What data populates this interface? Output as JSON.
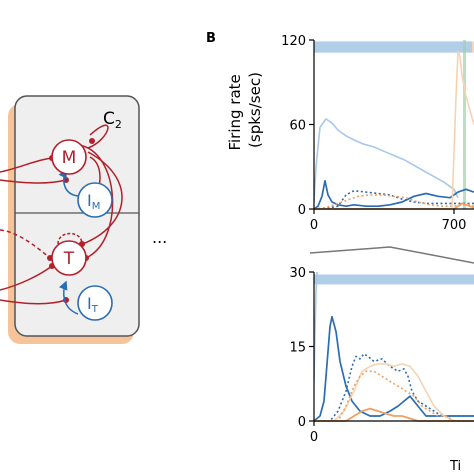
{
  "colors": {
    "red": "#b2202a",
    "blue": "#2a6db3",
    "orange": "#f0a060",
    "light_blue": "#a8c8e8",
    "light_orange": "#f8d2b0",
    "box_fill": "#efefef",
    "box_stroke": "#555555",
    "band_blue": "#a9c9e6",
    "band_green": "#9fd0a8"
  },
  "diagram": {
    "module_label": "C",
    "module_sub": "2",
    "ellipsis": "...",
    "nodes": {
      "m_main": "M",
      "m_inh_main": "I",
      "m_inh_sub": "M",
      "t_main": "T",
      "t_inh_main": "I",
      "t_inh_sub": "T"
    }
  },
  "panel_label": "B",
  "ylabel_line1": "Firing rate",
  "ylabel_line2": "(spks/sec)",
  "xlabel_partial": "Ti",
  "chart_data": [
    {
      "type": "line",
      "name": "top",
      "ylim": [
        0,
        120
      ],
      "xlim": [
        0,
        800
      ],
      "yticks": [
        "120",
        "60",
        "0"
      ],
      "ytick_values": [
        120,
        60,
        0
      ],
      "xticks": [
        "0",
        "700"
      ],
      "xtick_values": [
        0,
        700
      ],
      "series": [
        {
          "style": "light-blue",
          "x": [
            0,
            10,
            30,
            60,
            90,
            120,
            160,
            200,
            250,
            300,
            350,
            400,
            450,
            500,
            550,
            600,
            650,
            700,
            720
          ],
          "y": [
            5,
            30,
            58,
            64,
            61,
            56,
            52,
            49,
            46,
            44,
            41,
            38,
            35,
            31,
            27,
            23,
            19,
            14,
            8
          ]
        },
        {
          "style": "blue",
          "x": [
            0,
            20,
            40,
            55,
            70,
            90,
            120,
            160,
            200,
            260,
            320,
            380,
            440,
            500,
            560,
            620,
            680,
            720,
            760,
            800
          ],
          "y": [
            0,
            2,
            9,
            20,
            10,
            5,
            3,
            2,
            3,
            2,
            2,
            3,
            5,
            9,
            11,
            9,
            8,
            12,
            14,
            12
          ]
        },
        {
          "style": "blue-dotted",
          "x": [
            0,
            40,
            80,
            120,
            160,
            200,
            260,
            320,
            380,
            440,
            500,
            560,
            620,
            680,
            720,
            760,
            800
          ],
          "y": [
            0,
            0,
            1,
            2,
            10,
            13,
            12,
            11,
            10,
            7,
            5,
            4,
            4,
            4,
            4,
            4,
            4
          ]
        },
        {
          "style": "orange-dotted",
          "x": [
            0,
            60,
            100,
            140,
            180,
            220,
            280,
            340,
            400,
            460,
            520,
            580,
            640,
            700,
            740,
            780,
            800
          ],
          "y": [
            0,
            1,
            3,
            5,
            7,
            9,
            10,
            10,
            9,
            8,
            5,
            3,
            2,
            2,
            3,
            3,
            2
          ]
        },
        {
          "style": "orange",
          "x": [
            0,
            700,
            720,
            740,
            760,
            780,
            800
          ],
          "y": [
            0,
            0,
            2,
            4,
            3,
            2,
            1
          ]
        },
        {
          "style": "light-orange",
          "x": [
            690,
            700,
            710,
            720,
            730,
            740,
            760,
            780,
            800
          ],
          "y": [
            0,
            40,
            80,
            112,
            108,
            95,
            80,
            70,
            60
          ]
        }
      ],
      "bands": [
        {
          "style": "blue",
          "x": [
            0,
            790
          ],
          "y": [
            111,
            119
          ]
        },
        {
          "style": "orange",
          "x": [
            790,
            800
          ],
          "y": [
            111,
            119
          ]
        },
        {
          "style": "green",
          "x": [
            745,
            760
          ],
          "y": [
            0,
            120
          ]
        }
      ]
    },
    {
      "type": "line",
      "name": "bottom",
      "ylim": [
        0,
        30
      ],
      "xlim": [
        0,
        800
      ],
      "yticks": [
        "30",
        "15",
        "0"
      ],
      "ytick_values": [
        30,
        15,
        0
      ],
      "xticks": [
        "0"
      ],
      "xtick_values": [
        0
      ],
      "series": [
        {
          "style": "light-blue",
          "x": [
            0,
            5,
            10,
            15
          ],
          "y": [
            8,
            18,
            26,
            30
          ]
        },
        {
          "style": "blue",
          "x": [
            0,
            30,
            50,
            70,
            80,
            90,
            110,
            130,
            160,
            190,
            230,
            280,
            330,
            380,
            420,
            450,
            480,
            520,
            560,
            600,
            640,
            680,
            720,
            760,
            800
          ],
          "y": [
            0,
            1,
            4,
            14,
            19,
            21,
            18,
            12,
            7,
            4,
            2,
            1,
            1,
            2,
            3,
            4,
            5,
            3,
            1,
            1,
            1,
            1,
            1,
            1,
            1
          ]
        },
        {
          "style": "blue-dotted",
          "x": [
            0,
            80,
            120,
            160,
            190,
            210,
            230,
            250,
            270,
            300,
            340,
            380,
            420,
            450,
            470,
            490,
            520,
            560,
            600,
            640,
            700,
            760,
            800
          ],
          "y": [
            0,
            0,
            2,
            6,
            11,
            13,
            12.5,
            13.5,
            13,
            12,
            12.5,
            11,
            10,
            10.5,
            9,
            6,
            4,
            3,
            2,
            1,
            1,
            1,
            1
          ]
        },
        {
          "style": "light-orange",
          "x": [
            0,
            100,
            150,
            200,
            240,
            280,
            320,
            360,
            400,
            440,
            480,
            520,
            560,
            600,
            650,
            700,
            760,
            800
          ],
          "y": [
            0,
            0,
            2,
            6,
            10,
            11,
            11.5,
            11.5,
            11,
            11.5,
            11,
            9,
            6,
            3,
            1,
            0,
            0,
            0
          ]
        },
        {
          "style": "orange-dotted",
          "x": [
            0,
            120,
            160,
            200,
            230,
            260,
            300,
            340,
            380,
            420,
            460,
            500,
            540,
            580,
            620,
            660,
            700,
            760,
            800
          ],
          "y": [
            0,
            0,
            3,
            7,
            9,
            10,
            10,
            9,
            8,
            7,
            6,
            5,
            3,
            2,
            1,
            1,
            0,
            0,
            0
          ]
        },
        {
          "style": "orange",
          "x": [
            0,
            160,
            200,
            240,
            280,
            320,
            360,
            400,
            440,
            480,
            520,
            560,
            600,
            660,
            720,
            800
          ],
          "y": [
            0,
            0,
            1,
            2,
            2.5,
            2,
            1.5,
            1,
            1,
            0.5,
            0,
            0,
            0,
            0,
            0,
            0
          ]
        }
      ],
      "bands": [
        {
          "style": "blue",
          "x": [
            0,
            800
          ],
          "y": [
            27.5,
            29.5
          ]
        }
      ]
    }
  ]
}
